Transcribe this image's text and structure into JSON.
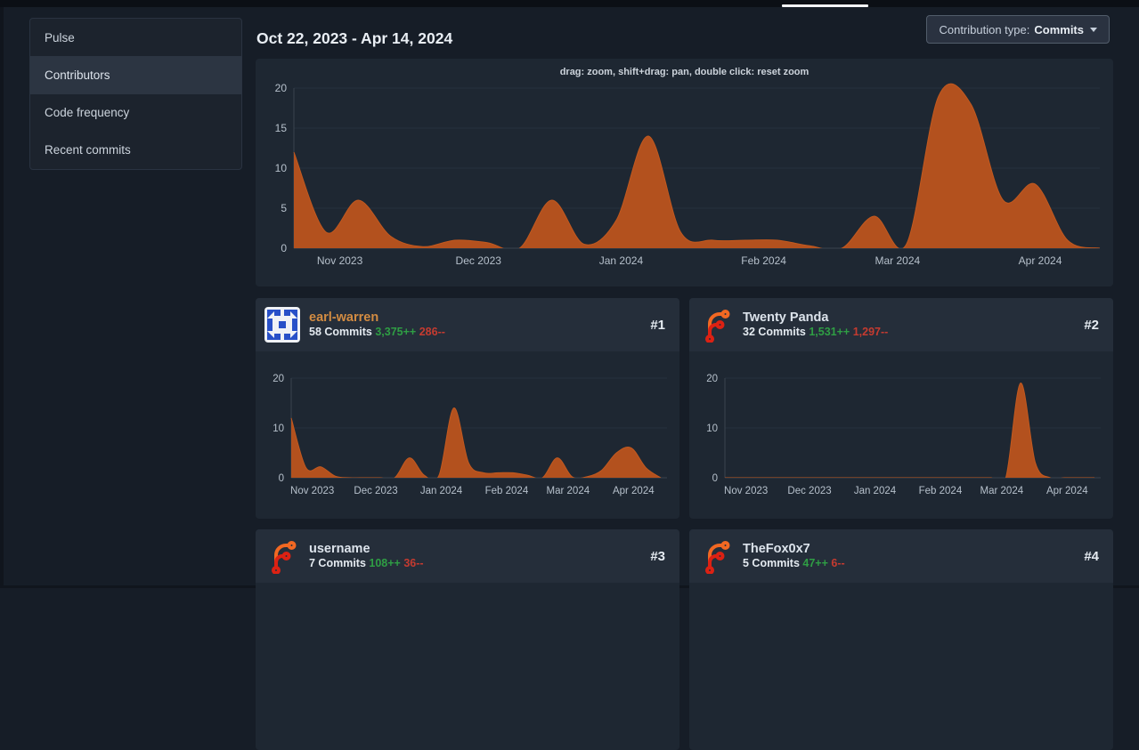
{
  "topbar": {
    "active_tab_underline": true
  },
  "sidebar": {
    "items": [
      {
        "label": "Pulse",
        "active": false
      },
      {
        "label": "Contributors",
        "active": true
      },
      {
        "label": "Code frequency",
        "active": false
      },
      {
        "label": "Recent commits",
        "active": false
      }
    ]
  },
  "header": {
    "date_range": "Oct 22, 2023 - Apr 14, 2024",
    "contribution_type": {
      "label": "Contribution type:",
      "value": "Commits"
    }
  },
  "colors": {
    "area_fill": "#b3511e",
    "area_stroke": "#c2591f",
    "additions_green": "#2f9e44",
    "deletions_red": "#c53b30",
    "username_link_orange": "#d38c42",
    "panel_bg": "#1e2732",
    "card_header_bg": "#252e3a",
    "page_bg": "#161d27"
  },
  "contributors": [
    {
      "name": "earl-warren",
      "commits_text": "58 Commits",
      "additions_text": "3,375++",
      "deletions_text": "286--",
      "rank": "#1",
      "avatar": "identicon-blue",
      "chart_index": 1
    },
    {
      "name": "Twenty Panda",
      "commits_text": "32 Commits",
      "additions_text": "1,531++",
      "deletions_text": "1,297--",
      "rank": "#2",
      "avatar": "forgejo-logo",
      "chart_index": 2
    },
    {
      "name": "username",
      "commits_text": "7 Commits",
      "additions_text": "108++",
      "deletions_text": "36--",
      "rank": "#3",
      "avatar": "forgejo-logo",
      "chart_index": null
    },
    {
      "name": "TheFox0x7",
      "commits_text": "5 Commits",
      "additions_text": "47++",
      "deletions_text": "6--",
      "rank": "#4",
      "avatar": "forgejo-logo",
      "chart_index": null
    }
  ],
  "chart_data": [
    {
      "type": "area",
      "name": "all-contributions-weekly-commits",
      "annotation": "drag: zoom, shift+drag: pan, double click: reset zoom",
      "x_range": "Oct 22, 2023 - Apr 14, 2024",
      "x_unit": "week",
      "ylim": [
        0,
        20
      ],
      "y_ticks": [
        0,
        5,
        10,
        15,
        20
      ],
      "x_ticks": [
        {
          "label": "Nov 2023",
          "f": 0.057
        },
        {
          "label": "Dec 2023",
          "f": 0.229
        },
        {
          "label": "Jan 2024",
          "f": 0.406
        },
        {
          "label": "Feb 2024",
          "f": 0.583
        },
        {
          "label": "Mar 2024",
          "f": 0.749
        },
        {
          "label": "Apr 2024",
          "f": 0.926
        }
      ],
      "values": [
        12,
        2,
        6,
        1.5,
        0.2,
        1,
        0.7,
        0,
        6,
        0.5,
        3.5,
        14,
        2,
        1,
        1,
        1,
        0.3,
        0,
        4,
        0.5,
        19,
        18,
        6,
        8,
        1,
        0
      ]
    },
    {
      "type": "area",
      "name": "earl-warren-weekly-commits",
      "ylim": [
        0,
        20
      ],
      "y_ticks": [
        0,
        10,
        20
      ],
      "x_ticks": [
        {
          "label": "Nov 2023",
          "f": 0.057
        },
        {
          "label": "Dec 2023",
          "f": 0.229
        },
        {
          "label": "Jan 2024",
          "f": 0.406
        },
        {
          "label": "Feb 2024",
          "f": 0.583
        },
        {
          "label": "Mar 2024",
          "f": 0.749
        },
        {
          "label": "Apr 2024",
          "f": 0.926
        }
      ],
      "values": [
        12,
        2,
        2.2,
        0.3,
        0,
        0,
        0,
        0,
        4,
        0.5,
        0.5,
        14,
        3,
        1,
        1,
        1,
        0.5,
        0,
        4,
        0.2,
        0.2,
        1.5,
        5,
        6,
        2,
        0
      ]
    },
    {
      "type": "area",
      "name": "twenty-panda-weekly-commits",
      "ylim": [
        0,
        20
      ],
      "y_ticks": [
        0,
        10,
        20
      ],
      "x_ticks": [
        {
          "label": "Nov 2023",
          "f": 0.057
        },
        {
          "label": "Dec 2023",
          "f": 0.229
        },
        {
          "label": "Jan 2024",
          "f": 0.406
        },
        {
          "label": "Feb 2024",
          "f": 0.583
        },
        {
          "label": "Mar 2024",
          "f": 0.749
        },
        {
          "label": "Apr 2024",
          "f": 0.926
        }
      ],
      "values": [
        0,
        0,
        0,
        0,
        0,
        0,
        0,
        0,
        0,
        0,
        0,
        0,
        0,
        0,
        0,
        0,
        0,
        0,
        0,
        0,
        19,
        3,
        0,
        0,
        0,
        0
      ]
    }
  ]
}
